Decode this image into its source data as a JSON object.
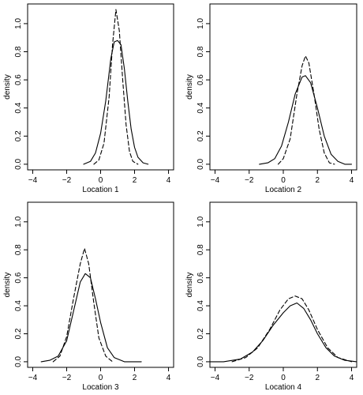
{
  "chart_data": [
    {
      "type": "line",
      "xlabel": "Location 1",
      "ylabel": "density",
      "xlim": [
        -4.3,
        4.3
      ],
      "ylim": [
        -0.04,
        1.14
      ],
      "xticks": [
        -4,
        -2,
        0,
        2,
        4
      ],
      "yticks": [
        0.0,
        0.2,
        0.4,
        0.6,
        0.8,
        1.0
      ],
      "series": [
        {
          "style": "solid",
          "points": [
            [
              -1.0,
              0.0
            ],
            [
              -0.6,
              0.02
            ],
            [
              -0.3,
              0.08
            ],
            [
              0.0,
              0.22
            ],
            [
              0.3,
              0.45
            ],
            [
              0.6,
              0.75
            ],
            [
              0.8,
              0.87
            ],
            [
              1.0,
              0.88
            ],
            [
              1.2,
              0.85
            ],
            [
              1.4,
              0.68
            ],
            [
              1.6,
              0.45
            ],
            [
              1.8,
              0.25
            ],
            [
              2.0,
              0.12
            ],
            [
              2.2,
              0.05
            ],
            [
              2.5,
              0.01
            ],
            [
              2.8,
              0.0
            ]
          ]
        },
        {
          "style": "dashed",
          "points": [
            [
              -0.4,
              0.0
            ],
            [
              -0.1,
              0.03
            ],
            [
              0.2,
              0.15
            ],
            [
              0.5,
              0.48
            ],
            [
              0.7,
              0.85
            ],
            [
              0.9,
              1.1
            ],
            [
              1.1,
              0.95
            ],
            [
              1.3,
              0.6
            ],
            [
              1.5,
              0.28
            ],
            [
              1.7,
              0.09
            ],
            [
              1.9,
              0.02
            ],
            [
              2.2,
              0.0
            ]
          ]
        }
      ]
    },
    {
      "type": "line",
      "xlabel": "Location 2",
      "ylabel": "density",
      "xlim": [
        -4.3,
        4.3
      ],
      "ylim": [
        -0.04,
        1.14
      ],
      "xticks": [
        -4,
        -2,
        0,
        2,
        4
      ],
      "yticks": [
        0.0,
        0.2,
        0.4,
        0.6,
        0.8,
        1.0
      ],
      "series": [
        {
          "style": "solid",
          "points": [
            [
              -1.4,
              0.0
            ],
            [
              -0.9,
              0.01
            ],
            [
              -0.5,
              0.04
            ],
            [
              -0.1,
              0.13
            ],
            [
              0.3,
              0.3
            ],
            [
              0.7,
              0.5
            ],
            [
              1.1,
              0.62
            ],
            [
              1.3,
              0.63
            ],
            [
              1.6,
              0.58
            ],
            [
              2.0,
              0.4
            ],
            [
              2.4,
              0.2
            ],
            [
              2.8,
              0.07
            ],
            [
              3.2,
              0.02
            ],
            [
              3.6,
              0.0
            ],
            [
              4.0,
              0.0
            ]
          ]
        },
        {
          "style": "dashed",
          "points": [
            [
              -0.3,
              0.0
            ],
            [
              0.0,
              0.04
            ],
            [
              0.4,
              0.18
            ],
            [
              0.8,
              0.5
            ],
            [
              1.1,
              0.7
            ],
            [
              1.3,
              0.77
            ],
            [
              1.5,
              0.72
            ],
            [
              1.8,
              0.5
            ],
            [
              2.1,
              0.25
            ],
            [
              2.4,
              0.08
            ],
            [
              2.7,
              0.01
            ],
            [
              3.0,
              0.0
            ]
          ]
        }
      ]
    },
    {
      "type": "line",
      "xlabel": "Location 3",
      "ylabel": "density",
      "xlim": [
        -4.3,
        4.3
      ],
      "ylim": [
        -0.04,
        1.14
      ],
      "xticks": [
        -4,
        -2,
        0,
        2,
        4
      ],
      "yticks": [
        0.0,
        0.2,
        0.4,
        0.6,
        0.8,
        1.0
      ],
      "series": [
        {
          "style": "solid",
          "points": [
            [
              -3.5,
              0.0
            ],
            [
              -3.0,
              0.01
            ],
            [
              -2.5,
              0.04
            ],
            [
              -2.0,
              0.15
            ],
            [
              -1.6,
              0.36
            ],
            [
              -1.2,
              0.57
            ],
            [
              -0.9,
              0.63
            ],
            [
              -0.6,
              0.6
            ],
            [
              -0.3,
              0.45
            ],
            [
              0.0,
              0.28
            ],
            [
              0.4,
              0.1
            ],
            [
              0.8,
              0.03
            ],
            [
              1.4,
              0.0
            ],
            [
              2.0,
              0.0
            ],
            [
              2.4,
              0.0
            ]
          ]
        },
        {
          "style": "dashed",
          "points": [
            [
              -2.8,
              0.0
            ],
            [
              -2.4,
              0.04
            ],
            [
              -2.0,
              0.18
            ],
            [
              -1.6,
              0.45
            ],
            [
              -1.2,
              0.7
            ],
            [
              -0.95,
              0.81
            ],
            [
              -0.7,
              0.7
            ],
            [
              -0.4,
              0.42
            ],
            [
              -0.1,
              0.17
            ],
            [
              0.3,
              0.04
            ],
            [
              0.7,
              0.0
            ]
          ]
        }
      ]
    },
    {
      "type": "line",
      "xlabel": "Location 4",
      "ylabel": "density",
      "xlim": [
        -4.3,
        4.3
      ],
      "ylim": [
        -0.04,
        1.14
      ],
      "xticks": [
        -4,
        -2,
        0,
        2,
        4
      ],
      "yticks": [
        0.0,
        0.2,
        0.4,
        0.6,
        0.8,
        1.0
      ],
      "series": [
        {
          "style": "solid",
          "points": [
            [
              -4.3,
              0.0
            ],
            [
              -3.5,
              0.0
            ],
            [
              -2.5,
              0.02
            ],
            [
              -1.8,
              0.07
            ],
            [
              -1.2,
              0.15
            ],
            [
              -0.6,
              0.26
            ],
            [
              0.0,
              0.35
            ],
            [
              0.4,
              0.4
            ],
            [
              0.8,
              0.42
            ],
            [
              1.2,
              0.38
            ],
            [
              1.6,
              0.3
            ],
            [
              2.0,
              0.2
            ],
            [
              2.5,
              0.1
            ],
            [
              3.0,
              0.04
            ],
            [
              3.6,
              0.01
            ],
            [
              4.3,
              0.0
            ]
          ]
        },
        {
          "style": "dashed",
          "points": [
            [
              -3.0,
              0.0
            ],
            [
              -2.2,
              0.03
            ],
            [
              -1.5,
              0.1
            ],
            [
              -0.8,
              0.23
            ],
            [
              -0.2,
              0.37
            ],
            [
              0.3,
              0.45
            ],
            [
              0.7,
              0.47
            ],
            [
              1.1,
              0.45
            ],
            [
              1.5,
              0.37
            ],
            [
              2.0,
              0.23
            ],
            [
              2.6,
              0.1
            ],
            [
              3.2,
              0.03
            ],
            [
              4.0,
              0.0
            ]
          ]
        }
      ]
    }
  ]
}
